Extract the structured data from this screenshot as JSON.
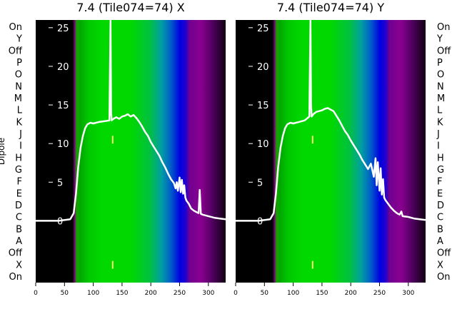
{
  "figure": {
    "ylabel": "Dipole",
    "bg_colors": {
      "black": "#000000",
      "green": "#00d000",
      "blue": "#0000e0",
      "purple": "#7a0080",
      "line": "#ffffff"
    }
  },
  "chart_data": [
    {
      "type": "line",
      "title": "7.4 (Tile074=74) X",
      "xlabel": "",
      "ylabel": "Dipole",
      "xlim": [
        0,
        330
      ],
      "ylim": [
        -8,
        26
      ],
      "x_ticks": [
        0,
        50,
        100,
        150,
        200,
        250,
        300
      ],
      "y_ticks": [
        0,
        5,
        10,
        15,
        20,
        25
      ],
      "dipole_labels": [
        "On",
        "Y",
        "Off",
        "P",
        "O",
        "N",
        "M",
        "L",
        "K",
        "J",
        "I",
        "H",
        "G",
        "F",
        "E",
        "D",
        "C",
        "B",
        "A",
        "Off",
        "X",
        "On"
      ],
      "series": [
        {
          "x": [
            0,
            20,
            40,
            60,
            66,
            70,
            74,
            78,
            82,
            86,
            90,
            95,
            100,
            110,
            120,
            128,
            130,
            131,
            132,
            135,
            140,
            145,
            150,
            155,
            160,
            165,
            170,
            175,
            180,
            185,
            190,
            195,
            200,
            205,
            210,
            215,
            220,
            225,
            230,
            235,
            240,
            243,
            245,
            247,
            250,
            252,
            254,
            256,
            258,
            260,
            262,
            264,
            266,
            268,
            270,
            275,
            280,
            283,
            285,
            287,
            290,
            300,
            310,
            320,
            330
          ],
          "y": [
            0,
            0,
            0,
            0.2,
            1,
            3.5,
            7,
            9.5,
            11,
            12,
            12.5,
            12.7,
            12.6,
            12.8,
            12.9,
            13,
            26,
            14,
            13,
            13.2,
            13.4,
            13.2,
            13.5,
            13.6,
            13.8,
            13.5,
            13.7,
            13.3,
            12.8,
            12.2,
            11.5,
            11,
            10.2,
            9.6,
            9,
            8.4,
            7.6,
            6.9,
            6.1,
            5.4,
            4.9,
            4.2,
            5,
            3.9,
            5.6,
            3.7,
            5.3,
            3.5,
            4.6,
            3,
            2.6,
            2.4,
            2.2,
            1.9,
            1.6,
            1.3,
            1.1,
            1,
            4,
            0.9,
            0.8,
            0.6,
            0.4,
            0.3,
            0.2
          ]
        }
      ],
      "vertical_markers": [
        130
      ]
    },
    {
      "type": "line",
      "title": "7.4 (Tile074=74) Y",
      "xlabel": "",
      "ylabel": "",
      "xlim": [
        0,
        330
      ],
      "ylim": [
        -8,
        26
      ],
      "x_ticks": [
        0,
        50,
        100,
        150,
        200,
        250,
        300
      ],
      "y_ticks": [
        0,
        5,
        10,
        15,
        20,
        25
      ],
      "dipole_labels": [
        "On",
        "Y",
        "Off",
        "P",
        "O",
        "N",
        "M",
        "L",
        "K",
        "J",
        "I",
        "H",
        "G",
        "F",
        "E",
        "D",
        "C",
        "B",
        "A",
        "Off",
        "X",
        "On"
      ],
      "series": [
        {
          "x": [
            0,
            20,
            40,
            60,
            66,
            70,
            74,
            78,
            82,
            86,
            90,
            95,
            100,
            110,
            120,
            128,
            130,
            131,
            132,
            135,
            140,
            145,
            150,
            155,
            160,
            165,
            170,
            175,
            180,
            185,
            190,
            195,
            200,
            205,
            210,
            215,
            220,
            225,
            230,
            235,
            240,
            243,
            245,
            247,
            250,
            252,
            254,
            256,
            258,
            260,
            262,
            264,
            266,
            268,
            270,
            275,
            280,
            285,
            288,
            290,
            300,
            310,
            320,
            330
          ],
          "y": [
            0,
            0,
            0,
            0.2,
            1,
            3.5,
            7,
            9.5,
            11,
            12,
            12.5,
            12.7,
            12.6,
            12.8,
            13,
            13.5,
            26,
            15,
            13.5,
            13.8,
            14.1,
            14.2,
            14.3,
            14.5,
            14.6,
            14.4,
            14.2,
            13.6,
            13.0,
            12.3,
            11.6,
            11.1,
            10.4,
            9.8,
            9.2,
            8.6,
            7.9,
            7.3,
            6.7,
            7.4,
            5.7,
            8.1,
            4.6,
            7.6,
            3.9,
            6.8,
            3.4,
            5.4,
            3,
            2.7,
            2.5,
            2.3,
            2.1,
            1.9,
            1.7,
            1.3,
            1.0,
            0.8,
            1.2,
            0.6,
            0.5,
            0.3,
            0.2,
            0.1
          ]
        }
      ],
      "vertical_markers": [
        130
      ]
    }
  ]
}
